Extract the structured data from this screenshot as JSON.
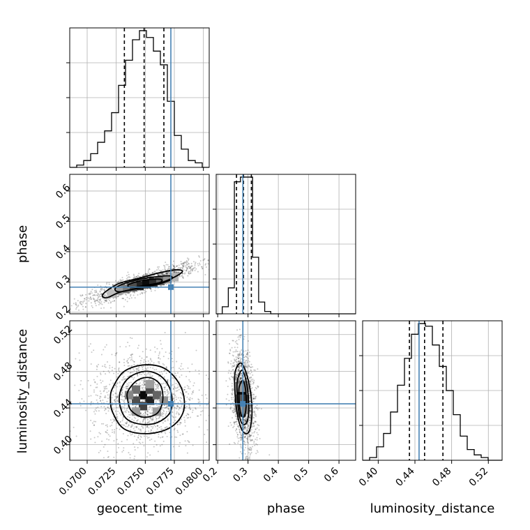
{
  "chart_data": {
    "type": "corner",
    "parameters": [
      "geocent_time",
      "phase",
      "luminosity_distance"
    ],
    "truths": {
      "geocent_time": 0.0772,
      "phase": 0.283,
      "luminosity_distance": 0.4445
    },
    "colors": {
      "truth": "#4682b4",
      "hist": "#000000",
      "grid": "#b0b0b0"
    },
    "grid": true,
    "ranges": {
      "geocent_time": [
        0.0685,
        0.0805
      ],
      "phase": [
        0.195,
        0.655
      ],
      "luminosity_distance": [
        0.383,
        0.535
      ]
    },
    "ticks": {
      "geocent_time": [
        0.07,
        0.0725,
        0.075,
        0.0775,
        0.08
      ],
      "phase": [
        0.2,
        0.3,
        0.4,
        0.5,
        0.6
      ],
      "luminosity_distance": [
        0.4,
        0.44,
        0.48,
        0.52
      ]
    },
    "tick_labels": {
      "geocent_time": [
        "0.0700",
        "0.0725",
        "0.0750",
        "0.0775",
        "0.0800"
      ],
      "phase": [
        "0.2",
        "0.3",
        "0.4",
        "0.5",
        "0.6"
      ],
      "luminosity_distance": [
        "0.40",
        "0.44",
        "0.48",
        "0.52"
      ]
    },
    "quantiles": {
      "geocent_time": [
        0.0732,
        0.0749,
        0.0766
      ],
      "phase": [
        0.262,
        0.285,
        0.311
      ],
      "luminosity_distance": [
        0.434,
        0.4505,
        0.4705
      ]
    },
    "histograms": {
      "geocent_time": {
        "edges": [
          0.0685,
          0.0691,
          0.0697,
          0.0703,
          0.0709,
          0.0715,
          0.0721,
          0.0727,
          0.0733,
          0.0739,
          0.0745,
          0.0751,
          0.0757,
          0.0763,
          0.0769,
          0.0775,
          0.0781,
          0.0787,
          0.0793,
          0.0799,
          0.0805
        ],
        "counts": [
          0,
          1,
          3,
          6,
          11,
          16,
          24,
          36,
          47,
          56,
          60,
          57,
          51,
          45,
          29,
          14,
          8,
          3,
          2,
          0
        ]
      },
      "phase": {
        "edges": [
          0.195,
          0.215,
          0.235,
          0.255,
          0.275,
          0.295,
          0.315,
          0.335,
          0.355,
          0.375,
          0.395,
          0.415,
          0.435,
          0.455,
          0.475,
          0.495,
          0.515,
          0.535,
          0.555,
          0.575,
          0.595,
          0.615,
          0.635,
          0.655
        ],
        "counts": [
          0,
          3,
          11,
          56,
          58,
          58,
          24,
          5,
          1,
          0,
          0,
          0,
          0,
          0,
          0,
          0,
          0,
          0,
          0,
          0,
          0,
          0,
          0
        ]
      },
      "luminosity_distance": {
        "edges": [
          0.383,
          0.3906,
          0.3982,
          0.4058,
          0.4134,
          0.421,
          0.4286,
          0.4362,
          0.4438,
          0.4514,
          0.459,
          0.4666,
          0.4742,
          0.4818,
          0.4894,
          0.497,
          0.5046,
          0.5122,
          0.5198,
          0.5274,
          0.535
        ],
        "counts": [
          0,
          1,
          5,
          10,
          18,
          28,
          38,
          47,
          51,
          50,
          43,
          35,
          26,
          17,
          9,
          4,
          2,
          1,
          0,
          0
        ]
      }
    },
    "contours": {
      "phase_vs_geocent_time": {
        "levels": [
          [
            [
              0.0717,
              0.248
            ],
            [
              0.0728,
              0.266
            ],
            [
              0.0745,
              0.281
            ],
            [
              0.0762,
              0.296
            ],
            [
              0.0775,
              0.316
            ],
            [
              0.0782,
              0.335
            ],
            [
              0.0776,
              0.34
            ],
            [
              0.0762,
              0.33
            ],
            [
              0.0745,
              0.313
            ],
            [
              0.0728,
              0.296
            ],
            [
              0.0718,
              0.274
            ],
            [
              0.0713,
              0.256
            ]
          ],
          [
            [
              0.0729,
              0.268
            ],
            [
              0.0745,
              0.28
            ],
            [
              0.0762,
              0.294
            ],
            [
              0.0772,
              0.308
            ],
            [
              0.0771,
              0.32
            ],
            [
              0.0755,
              0.315
            ],
            [
              0.074,
              0.304
            ],
            [
              0.0727,
              0.287
            ],
            [
              0.0724,
              0.274
            ]
          ],
          [
            [
              0.0739,
              0.282
            ],
            [
              0.0752,
              0.29
            ],
            [
              0.0763,
              0.299
            ],
            [
              0.0763,
              0.309
            ],
            [
              0.0751,
              0.307
            ],
            [
              0.074,
              0.298
            ],
            [
              0.0735,
              0.288
            ]
          ]
        ]
      },
      "luminosity_distance_vs_geocent_time": {
        "levels": [
          [
            [
              0.0722,
              0.462
            ],
            [
              0.0732,
              0.48
            ],
            [
              0.075,
              0.487
            ],
            [
              0.0768,
              0.482
            ],
            [
              0.0781,
              0.462
            ],
            [
              0.0783,
              0.437
            ],
            [
              0.0772,
              0.419
            ],
            [
              0.0752,
              0.412
            ],
            [
              0.0732,
              0.417
            ],
            [
              0.0722,
              0.435
            ],
            [
              0.072,
              0.45
            ]
          ],
          [
            [
              0.0729,
              0.46
            ],
            [
              0.0737,
              0.474
            ],
            [
              0.0751,
              0.48
            ],
            [
              0.0764,
              0.474
            ],
            [
              0.0772,
              0.458
            ],
            [
              0.0772,
              0.437
            ],
            [
              0.0762,
              0.425
            ],
            [
              0.0748,
              0.422
            ],
            [
              0.0734,
              0.428
            ],
            [
              0.0728,
              0.444
            ]
          ],
          [
            [
              0.0735,
              0.458
            ],
            [
              0.0743,
              0.47
            ],
            [
              0.0754,
              0.473
            ],
            [
              0.0763,
              0.465
            ],
            [
              0.0765,
              0.448
            ],
            [
              0.076,
              0.434
            ],
            [
              0.0748,
              0.43
            ],
            [
              0.0738,
              0.437
            ],
            [
              0.0735,
              0.448
            ]
          ]
        ]
      },
      "luminosity_distance_vs_phase": {
        "levels": [
          [
            [
              0.257,
              0.478
            ],
            [
              0.275,
              0.489
            ],
            [
              0.292,
              0.48
            ],
            [
              0.308,
              0.458
            ],
            [
              0.313,
              0.432
            ],
            [
              0.303,
              0.414
            ],
            [
              0.284,
              0.414
            ],
            [
              0.268,
              0.428
            ],
            [
              0.258,
              0.452
            ]
          ],
          [
            [
              0.265,
              0.47
            ],
            [
              0.279,
              0.481
            ],
            [
              0.292,
              0.472
            ],
            [
              0.301,
              0.452
            ],
            [
              0.301,
              0.431
            ],
            [
              0.29,
              0.422
            ],
            [
              0.277,
              0.425
            ],
            [
              0.268,
              0.44
            ],
            [
              0.264,
              0.458
            ]
          ],
          [
            [
              0.271,
              0.463
            ],
            [
              0.282,
              0.47
            ],
            [
              0.291,
              0.462
            ],
            [
              0.294,
              0.445
            ],
            [
              0.289,
              0.432
            ],
            [
              0.279,
              0.431
            ],
            [
              0.272,
              0.442
            ],
            [
              0.27,
              0.455
            ]
          ]
        ]
      }
    },
    "density_cells": {
      "phase_vs_geocent_time": [
        [
          0.0745,
          0.287,
          0.9
        ],
        [
          0.0751,
          0.293,
          1.0
        ],
        [
          0.0757,
          0.299,
          0.85
        ],
        [
          0.0739,
          0.283,
          0.7
        ],
        [
          0.0763,
          0.303,
          0.6
        ],
        [
          0.0733,
          0.277,
          0.5
        ],
        [
          0.0769,
          0.309,
          0.4
        ],
        [
          0.0727,
          0.272,
          0.35
        ],
        [
          0.0775,
          0.316,
          0.25
        ],
        [
          0.0721,
          0.262,
          0.2
        ]
      ],
      "luminosity_distance_vs_geocent_time": [
        [
          0.0748,
          0.454,
          1.0
        ],
        [
          0.0754,
          0.448,
          0.9
        ],
        [
          0.0742,
          0.448,
          0.7
        ],
        [
          0.0754,
          0.46,
          0.7
        ],
        [
          0.0748,
          0.442,
          0.75
        ],
        [
          0.076,
          0.454,
          0.6
        ],
        [
          0.0742,
          0.46,
          0.55
        ],
        [
          0.0736,
          0.454,
          0.45
        ],
        [
          0.0766,
          0.448,
          0.4
        ],
        [
          0.076,
          0.436,
          0.35
        ],
        [
          0.0742,
          0.436,
          0.35
        ],
        [
          0.0754,
          0.466,
          0.35
        ]
      ],
      "luminosity_distance_vs_phase": [
        [
          0.28,
          0.455,
          1.0
        ],
        [
          0.28,
          0.445,
          0.95
        ],
        [
          0.29,
          0.45,
          0.8
        ],
        [
          0.27,
          0.45,
          0.65
        ],
        [
          0.28,
          0.465,
          0.55
        ],
        [
          0.28,
          0.435,
          0.6
        ],
        [
          0.29,
          0.462,
          0.45
        ],
        [
          0.29,
          0.438,
          0.45
        ],
        [
          0.27,
          0.44,
          0.35
        ],
        [
          0.27,
          0.462,
          0.35
        ]
      ]
    },
    "axis_labels": {
      "geocent_time": "geocent_time",
      "phase": "phase",
      "luminosity_distance": "luminosity_distance"
    }
  }
}
